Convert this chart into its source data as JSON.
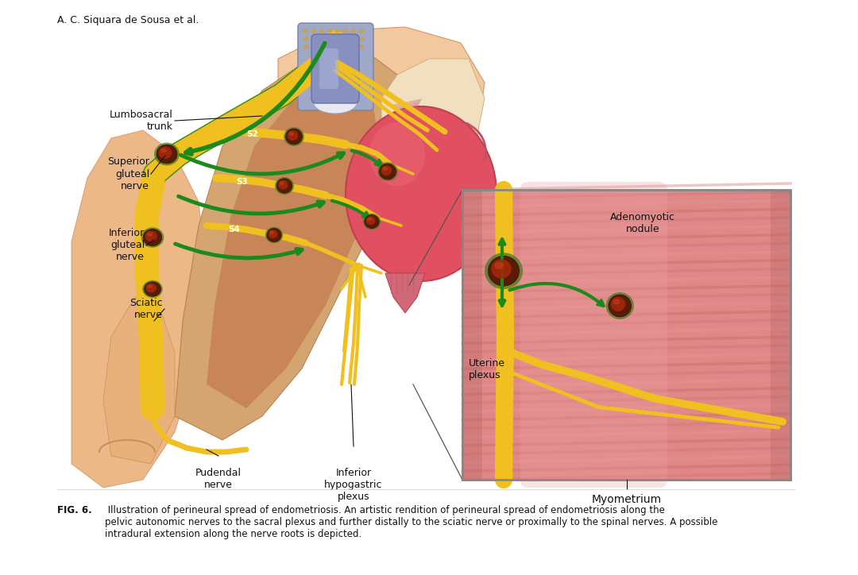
{
  "bg_color": "#ffffff",
  "author_text": "A. C. Siquara de Sousa et al.",
  "author_fontsize": 9,
  "fig_label": "FIG. 6.",
  "fig_caption_rest": " Illustration of perineural spread of endometriosis. An artistic rendition of perineural spread of endometriosis along the\npelvic autonomic nerves to the sacral plexus and further distally to the sciatic nerve or proximally to the spinal nerves. A possible\nintradural extension along the nerve roots is depicted.",
  "caption_fontsize": 8.5,
  "nerve_yellow": "#F0C020",
  "nerve_yellow_dark": "#C89000",
  "nerve_green": "#1A8A1A",
  "nerve_green_dark": "#0A5A0A",
  "nodule_outer": "#2A6B10",
  "nodule_inner": "#6B1500",
  "nodule_bright": "#A02010",
  "flesh_light": "#F2C89E",
  "flesh_peach": "#EDB888",
  "flesh_mid": "#D8956A",
  "flesh_dark": "#C07848",
  "sacrum_light": "#E8C090",
  "sacrum_mid": "#D4A570",
  "sacrum_dark": "#B88550",
  "bone_light": "#F0E0C0",
  "spine_blue": "#A0A8C8",
  "spine_purple": "#9090C0",
  "uterus_red": "#E05060",
  "uterus_dark": "#C04050",
  "uterus_bright": "#F07080",
  "cervix_pink": "#D06878",
  "muscle_pink": "#E08080",
  "muscle_dark": "#C06060",
  "muscle_light": "#ECA0A0",
  "muscle_stripe": "#D47070",
  "inset_bg": "#E09090",
  "inset_border": "#888888",
  "white": "#ffffff",
  "black": "#111111",
  "line_color": "#333333",
  "label_fontsize": 9,
  "s_label_fontsize": 7.5
}
